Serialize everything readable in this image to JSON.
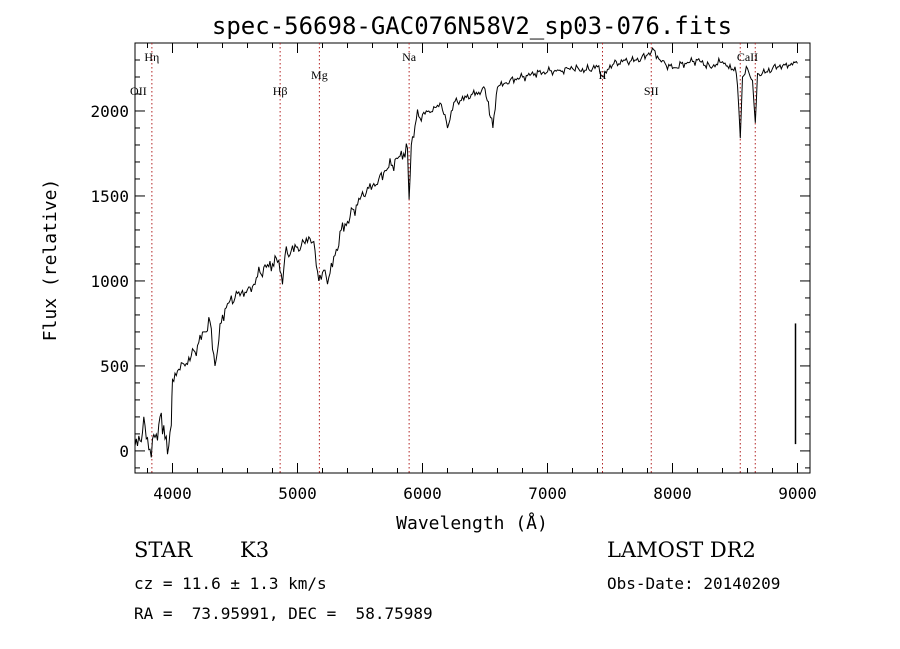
{
  "chart_data": {
    "type": "line",
    "title": "spec-56698-GAC076N58V2_sp03-076.fits",
    "xlabel": "Wavelength (Å)",
    "ylabel": "Flux (relative)",
    "xlim": [
      3700,
      9100
    ],
    "ylim": [
      -130,
      2400
    ],
    "x_ticks": [
      4000,
      5000,
      6000,
      7000,
      8000,
      9000
    ],
    "y_ticks": [
      0,
      500,
      1000,
      1500,
      2000
    ],
    "grid": false,
    "series": [
      {
        "x": [
          3700,
          3740,
          3780,
          3820,
          3860,
          3900,
          3940,
          3970,
          3990,
          4000,
          4050,
          4100,
          4150,
          4200,
          4250,
          4300,
          4340,
          4400,
          4450,
          4500,
          4550,
          4600,
          4650,
          4700,
          4750,
          4800,
          4850,
          4880,
          4900,
          4950,
          5000,
          5050,
          5100,
          5140,
          5170,
          5200,
          5250,
          5300,
          5350,
          5400,
          5450,
          5500,
          5550,
          5600,
          5650,
          5700,
          5750,
          5800,
          5850,
          5880,
          5893,
          5910,
          5950,
          6000,
          6050,
          6100,
          6150,
          6200,
          6250,
          6300,
          6350,
          6400,
          6450,
          6500,
          6563,
          6600,
          6650,
          6700,
          6800,
          6900,
          7000,
          7100,
          7200,
          7300,
          7400,
          7450,
          7500,
          7600,
          7700,
          7750,
          7800,
          7850,
          7900,
          8000,
          8100,
          8200,
          8300,
          8400,
          8450,
          8500,
          8520,
          8542,
          8560,
          8600,
          8640,
          8662,
          8680,
          8750,
          8800,
          8850,
          8900,
          8950,
          9000
        ],
        "y": [
          30,
          60,
          150,
          10,
          80,
          200,
          70,
          30,
          150,
          420,
          480,
          500,
          560,
          620,
          700,
          760,
          500,
          800,
          870,
          900,
          930,
          950,
          980,
          1050,
          1080,
          1100,
          1120,
          980,
          1150,
          1180,
          1200,
          1230,
          1250,
          1180,
          1000,
          1050,
          1020,
          1150,
          1300,
          1350,
          1420,
          1480,
          1520,
          1560,
          1600,
          1650,
          1680,
          1720,
          1750,
          1780,
          1480,
          1800,
          1950,
          1980,
          2000,
          2020,
          2040,
          1900,
          2050,
          2060,
          2080,
          2100,
          2110,
          2130,
          1900,
          2140,
          2160,
          2180,
          2200,
          2220,
          2230,
          2240,
          2250,
          2240,
          2260,
          2200,
          2270,
          2290,
          2300,
          2310,
          2330,
          2360,
          2300,
          2250,
          2280,
          2300,
          2260,
          2290,
          2250,
          2260,
          2150,
          1840,
          2200,
          2250,
          2180,
          1930,
          2220,
          2230,
          2250,
          2260,
          2270,
          2280,
          2280
        ]
      }
    ],
    "annotations": [
      {
        "label": "Hη",
        "x": 3835,
        "row": "top"
      },
      {
        "label": "OII",
        "x": 3727,
        "row": "low"
      },
      {
        "label": "Hβ",
        "x": 4861,
        "row": "low"
      },
      {
        "label": "Mg",
        "x": 5175,
        "row": "mid"
      },
      {
        "label": "Na",
        "x": 5893,
        "row": "top"
      },
      {
        "label": "II",
        "x": 7440,
        "row": "mid"
      },
      {
        "label": "SII",
        "x": 7830,
        "row": "low"
      },
      {
        "label": "CaII",
        "x": 8600,
        "row": "top"
      }
    ],
    "annotation_lines_x": [
      3835,
      4861,
      5175,
      5893,
      7440,
      7830,
      8542,
      8662
    ]
  },
  "info": {
    "class_label": "STAR",
    "subclass": "K3",
    "survey": "LAMOST DR2",
    "cz": "cz = 11.6 ± 1.3 km/s",
    "obs_date": "Obs-Date: 20140209",
    "radec": "RA =  73.95991, DEC =  58.75989"
  }
}
